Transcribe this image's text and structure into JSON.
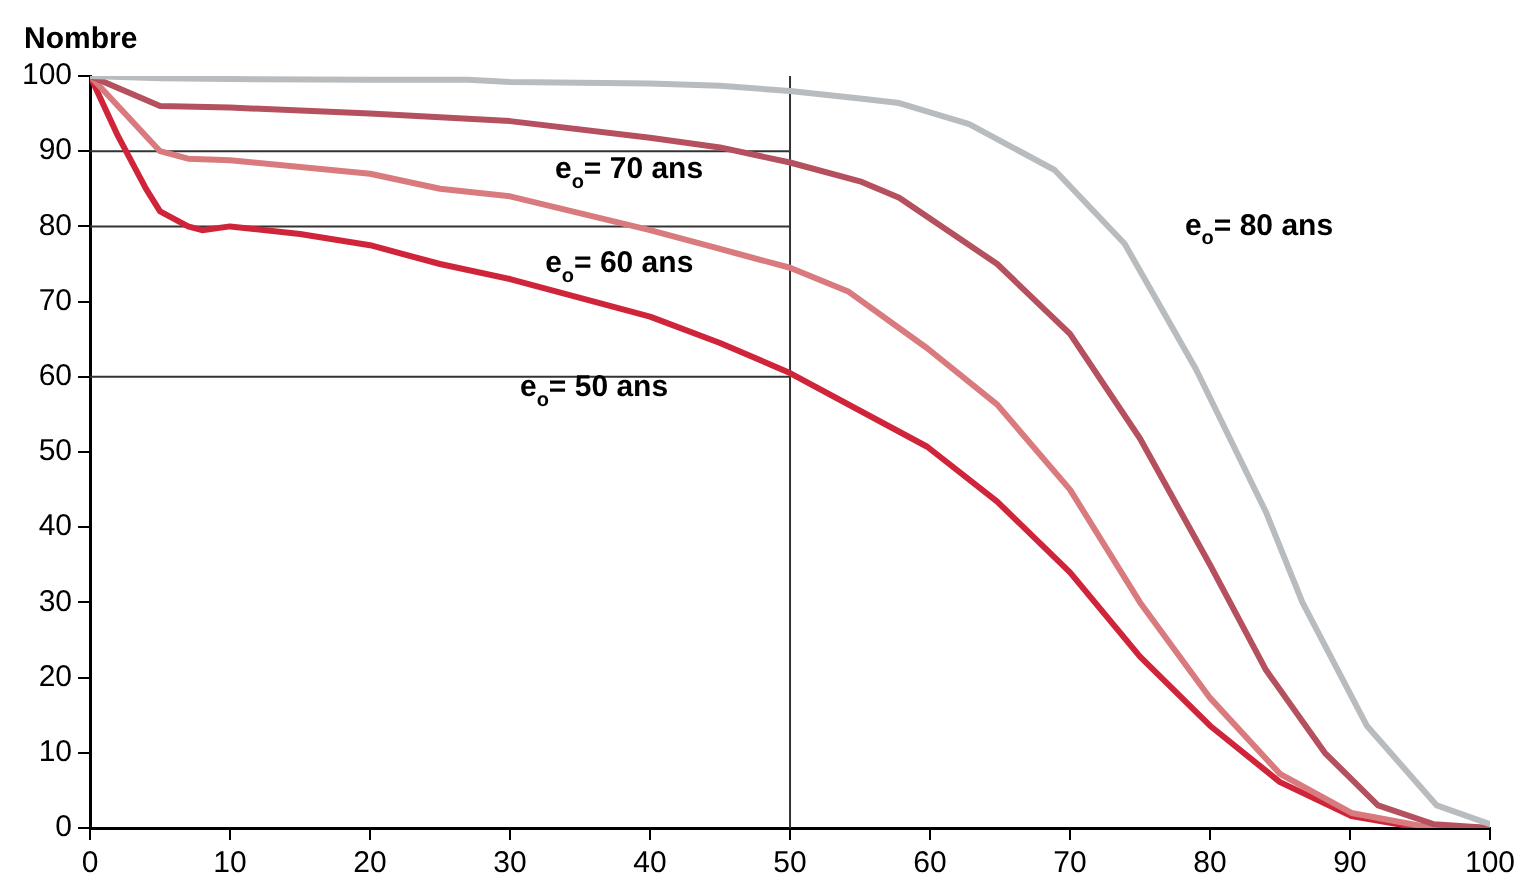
{
  "chart_data": {
    "type": "line",
    "ylabel": "Nombre",
    "xlim": [
      0,
      100
    ],
    "ylim": [
      0,
      100
    ],
    "xticks": [
      0,
      10,
      20,
      30,
      40,
      50,
      60,
      70,
      80,
      90,
      100
    ],
    "yticks": [
      0,
      10,
      20,
      30,
      40,
      50,
      60,
      70,
      80,
      90,
      100
    ],
    "grid": false,
    "legend": false,
    "marker": "none",
    "line_style": "solid",
    "series": [
      {
        "name": "e$_{o}$= 80 ans",
        "color": "#b8bcbf",
        "x": [
          0,
          5,
          10,
          20,
          27,
          30,
          40,
          45,
          50,
          55,
          57.8,
          62.8,
          68.9,
          73.9,
          79,
          84,
          86.6,
          91.2,
          96.2,
          100
        ],
        "values": [
          100,
          99.7,
          99.6,
          99.5,
          99.5,
          99.2,
          99,
          98.7,
          98,
          97,
          96.4,
          93.6,
          87.5,
          77.7,
          61,
          42,
          30,
          13.6,
          3,
          0.5
        ]
      },
      {
        "name": "e$_{o}$= 70 ans",
        "color": "#b5505e",
        "x": [
          0,
          5,
          10,
          20,
          30,
          40,
          45,
          50,
          55,
          57.8,
          64.8,
          70,
          75,
          80,
          84,
          88.2,
          92,
          96,
          100
        ],
        "values": [
          100,
          96,
          95.8,
          95,
          94,
          91.8,
          90.5,
          88.5,
          86,
          83.8,
          75,
          65.7,
          51.8,
          35,
          21,
          10,
          3,
          0.5,
          0
        ]
      },
      {
        "name": "e$_{o}$= 60 ans",
        "color": "#d97a7e",
        "x": [
          0,
          5,
          7,
          10,
          20,
          25,
          30,
          40,
          45,
          50,
          54.2,
          59.8,
          64.8,
          70,
          75,
          80,
          85,
          90.1,
          95,
          100
        ],
        "values": [
          100,
          90,
          89,
          88.8,
          87,
          85,
          84,
          79.5,
          77,
          74.5,
          71.3,
          63.8,
          56.3,
          45,
          30,
          17.3,
          7.2,
          2,
          0.3,
          0
        ]
      },
      {
        "name": "e$_{o}$= 50 ans",
        "color": "#d0243a",
        "x": [
          0,
          2,
          4,
          5,
          7,
          8,
          10,
          15,
          20,
          25,
          30,
          35,
          40,
          45,
          50,
          59.8,
          64.8,
          70,
          75,
          80,
          85,
          90.1,
          95,
          100
        ],
        "values": [
          100,
          92,
          85,
          82,
          80,
          79.5,
          80,
          79,
          77.5,
          75,
          73,
          70.5,
          68,
          64.5,
          60.5,
          50.7,
          43.4,
          34,
          22.8,
          13.6,
          6.1,
          1.6,
          0,
          0
        ]
      }
    ],
    "ref_lines": [
      {
        "axis": "x",
        "value": 50,
        "color": "#333333"
      },
      {
        "axis": "y",
        "value": 90,
        "color": "#333333"
      },
      {
        "axis": "y",
        "value": 80,
        "color": "#333333"
      },
      {
        "axis": "y",
        "value": 60,
        "color": "#333333"
      }
    ]
  }
}
